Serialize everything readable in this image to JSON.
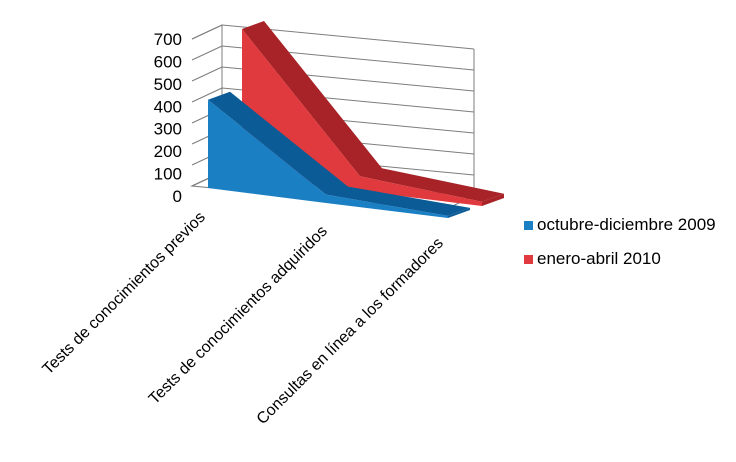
{
  "chart_data": {
    "type": "area",
    "three_d": true,
    "categories": [
      "Tests de conocimientos previos",
      "Tests de conocimientos adquiridos",
      "Consultas en línea a los formadores"
    ],
    "series": [
      {
        "name": "octubre-diciembre 2009",
        "values": [
          420,
          40,
          10
        ],
        "color": "#1b7fc4",
        "dark": "#0b5b97"
      },
      {
        "name": "enero-abril 2010",
        "values": [
          700,
          70,
          20
        ],
        "color": "#e03a3e",
        "dark": "#a82327"
      }
    ],
    "y_ticks": [
      "0",
      "100",
      "200",
      "300",
      "400",
      "500",
      "600",
      "700"
    ],
    "ylim": [
      0,
      700
    ],
    "grid": true,
    "legend_position": "right"
  }
}
